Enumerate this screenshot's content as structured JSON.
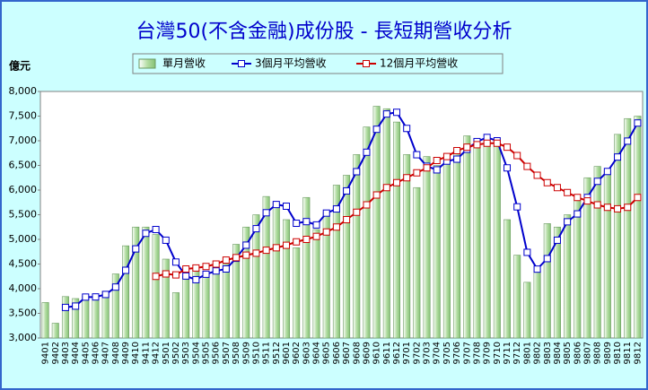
{
  "chart_data": {
    "type": "bar",
    "title": "台灣50(不含金融)成份股 - 長短期營收分析",
    "y_label": "億元",
    "categories": [
      "9401",
      "9402",
      "9403",
      "9404",
      "9405",
      "9406",
      "9407",
      "9408",
      "9409",
      "9410",
      "9411",
      "9412",
      "9501",
      "9502",
      "9503",
      "9504",
      "9505",
      "9506",
      "9507",
      "9508",
      "9509",
      "9510",
      "9511",
      "9512",
      "9601",
      "9602",
      "9603",
      "9604",
      "9605",
      "9606",
      "9607",
      "9608",
      "9609",
      "9610",
      "9611",
      "9612",
      "9701",
      "9702",
      "9703",
      "9704",
      "9705",
      "9706",
      "9707",
      "9708",
      "9709",
      "9710",
      "9711",
      "9712",
      "9801",
      "9802",
      "9803",
      "9804",
      "9805",
      "9806",
      "9807",
      "9808",
      "9809",
      "9810",
      "9811",
      "9812"
    ],
    "series": [
      {
        "name": "單月營收",
        "type": "bar",
        "color": "#b5dea5",
        "values": [
          3720,
          3300,
          3840,
          3800,
          3850,
          3850,
          3950,
          4300,
          4870,
          5250,
          5250,
          5100,
          4600,
          3920,
          4250,
          4380,
          4250,
          4450,
          4500,
          4900,
          5250,
          5500,
          5870,
          5750,
          5400,
          4830,
          5850,
          5200,
          5550,
          6100,
          6300,
          6720,
          7280,
          7700,
          7650,
          7380,
          6720,
          6050,
          6680,
          6500,
          6580,
          6800,
          7100,
          7050,
          7050,
          6900,
          5400,
          4680,
          4130,
          4380,
          5320,
          5250,
          5500,
          5800,
          6250,
          6480,
          6400,
          7130,
          7450,
          7500
        ]
      },
      {
        "name": "3個月平均營收",
        "type": "line",
        "color": "#0000cc",
        "values": [
          null,
          null,
          3620,
          3647,
          3830,
          3833,
          3883,
          4033,
          4373,
          4807,
          5123,
          5200,
          4983,
          4540,
          4257,
          4183,
          4293,
          4360,
          4400,
          4617,
          4883,
          5217,
          5540,
          5707,
          5673,
          5327,
          5360,
          5293,
          5533,
          5617,
          5983,
          6373,
          6767,
          7233,
          7543,
          7577,
          7250,
          6717,
          6483,
          6410,
          6587,
          6627,
          6827,
          6983,
          7067,
          7000,
          6450,
          5660,
          4737,
          4397,
          4610,
          4983,
          5357,
          5517,
          5850,
          6177,
          6377,
          6670,
          6993,
          7360
        ]
      },
      {
        "name": "12個月平均營收",
        "type": "line",
        "color": "#cc0000",
        "values": [
          null,
          null,
          null,
          null,
          null,
          null,
          null,
          null,
          null,
          null,
          null,
          4250,
          4300,
          4280,
          4400,
          4420,
          4450,
          4500,
          4580,
          4630,
          4680,
          4720,
          4780,
          4830,
          4880,
          4950,
          5000,
          5060,
          5150,
          5250,
          5400,
          5550,
          5700,
          5900,
          6050,
          6150,
          6250,
          6350,
          6450,
          6600,
          6680,
          6800,
          6870,
          6920,
          6950,
          6950,
          6870,
          6700,
          6480,
          6300,
          6150,
          6050,
          5950,
          5850,
          5780,
          5700,
          5650,
          5620,
          5650,
          5850
        ]
      }
    ],
    "ylim": [
      3000,
      8000
    ],
    "yticks": [
      {
        "value": 3000,
        "label": "3,000"
      },
      {
        "value": 3500,
        "label": "3,500"
      },
      {
        "value": 4000,
        "label": "4,000"
      },
      {
        "value": 4500,
        "label": "4,500"
      },
      {
        "value": 5000,
        "label": "5,000"
      },
      {
        "value": 5500,
        "label": "5,500"
      },
      {
        "value": 6000,
        "label": "6,000"
      },
      {
        "value": 6500,
        "label": "6,500"
      },
      {
        "value": 7000,
        "label": "7,000"
      },
      {
        "value": 7500,
        "label": "7,500"
      },
      {
        "value": 8000,
        "label": "8,000"
      }
    ],
    "legend": "top"
  }
}
